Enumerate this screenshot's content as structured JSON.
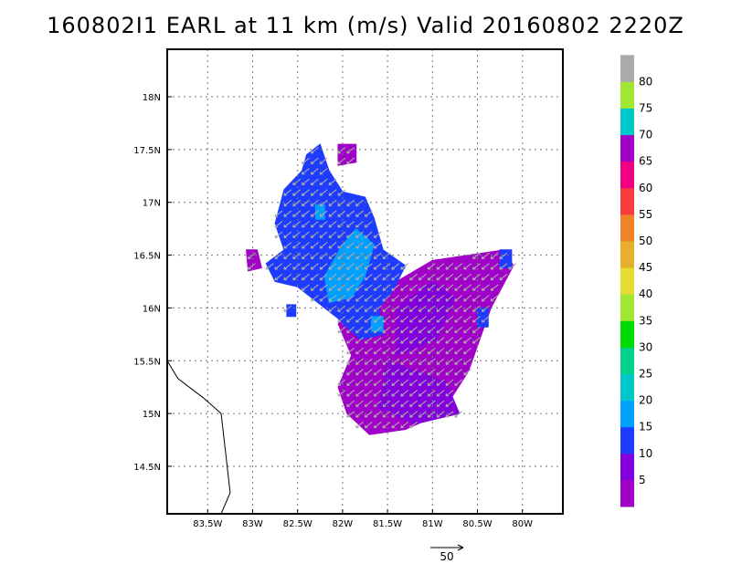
{
  "chart_data": {
    "type": "heatmap",
    "title": "160802I1  EARL  at 11 km (m/s)  Valid 20160802  2220Z",
    "x_ticks": [
      "83.5W",
      "83W",
      "82.5W",
      "82W",
      "81.5W",
      "81W",
      "80.5W",
      "80W"
    ],
    "x_tick_values": [
      -83.5,
      -83.0,
      -82.5,
      -82.0,
      -81.5,
      -81.0,
      -80.5,
      -80.0
    ],
    "y_ticks": [
      "18N",
      "17.5N",
      "17N",
      "16.5N",
      "16N",
      "15.5N",
      "15N",
      "14.5N"
    ],
    "y_tick_values": [
      18.0,
      17.5,
      17.0,
      16.5,
      16.0,
      15.5,
      15.0,
      14.5
    ],
    "xlim": [
      -83.95,
      -79.55
    ],
    "ylim": [
      14.05,
      18.45
    ],
    "grid": true,
    "colorbar": {
      "labels": [
        "5",
        "10",
        "15",
        "20",
        "25",
        "30",
        "35",
        "40",
        "45",
        "50",
        "55",
        "60",
        "65",
        "70",
        "75",
        "80"
      ],
      "colors": [
        "#a000c8",
        "#8200dc",
        "#1e3cff",
        "#00a0ff",
        "#00c8c8",
        "#00d28c",
        "#00dc00",
        "#a0e632",
        "#e6dc32",
        "#e6af2d",
        "#f08228",
        "#fa3c3c",
        "#f00082",
        "#a000c8",
        "#00c8c8",
        "#a0e632",
        "#aaaaaa"
      ]
    },
    "reference_vector": {
      "label": "50"
    },
    "coastline": [
      [
        -83.95,
        15.5
      ],
      [
        -83.83,
        15.33
      ],
      [
        -83.55,
        15.15
      ],
      [
        -83.35,
        15.0
      ],
      [
        -83.25,
        14.25
      ],
      [
        -83.35,
        14.05
      ]
    ],
    "wind_direction": "arrows point toward the southwest",
    "fields": [
      {
        "level": "5",
        "color": "#a000c8",
        "polygon": [
          [
            -81.5,
            16.2
          ],
          [
            -81.0,
            16.45
          ],
          [
            -80.2,
            16.55
          ],
          [
            -80.1,
            16.4
          ],
          [
            -80.35,
            16.0
          ],
          [
            -80.6,
            15.4
          ],
          [
            -80.9,
            15.0
          ],
          [
            -81.3,
            14.85
          ],
          [
            -81.7,
            14.8
          ],
          [
            -81.95,
            15.0
          ],
          [
            -82.05,
            15.25
          ],
          [
            -81.9,
            15.55
          ],
          [
            -82.05,
            15.85
          ],
          [
            -81.8,
            16.05
          ]
        ]
      },
      {
        "level": "5",
        "color": "#a000c8",
        "polygon": [
          [
            -83.07,
            16.55
          ],
          [
            -82.95,
            16.55
          ],
          [
            -82.9,
            16.38
          ],
          [
            -83.05,
            16.35
          ]
        ]
      },
      {
        "level": "5",
        "color": "#a000c8",
        "polygon": [
          [
            -82.05,
            17.55
          ],
          [
            -81.85,
            17.55
          ],
          [
            -81.85,
            17.38
          ],
          [
            -82.05,
            17.35
          ]
        ]
      },
      {
        "level": "10",
        "color": "#8200dc",
        "polygon": [
          [
            -81.4,
            16.0
          ],
          [
            -81.0,
            16.25
          ],
          [
            -80.75,
            16.1
          ],
          [
            -80.95,
            15.7
          ],
          [
            -81.4,
            15.55
          ]
        ]
      },
      {
        "level": "10",
        "color": "#8200dc",
        "polygon": [
          [
            -81.5,
            15.5
          ],
          [
            -80.85,
            15.3
          ],
          [
            -80.7,
            15.0
          ],
          [
            -81.2,
            14.9
          ],
          [
            -81.6,
            15.05
          ]
        ]
      },
      {
        "level": "15",
        "color": "#1e3cff",
        "polygon": [
          [
            -82.65,
            17.12
          ],
          [
            -82.45,
            17.3
          ],
          [
            -82.4,
            17.45
          ],
          [
            -82.25,
            17.55
          ],
          [
            -82.15,
            17.3
          ],
          [
            -82.0,
            17.1
          ],
          [
            -81.75,
            17.05
          ],
          [
            -81.65,
            16.85
          ],
          [
            -81.55,
            16.55
          ],
          [
            -81.3,
            16.4
          ],
          [
            -81.45,
            16.15
          ],
          [
            -81.6,
            16.0
          ],
          [
            -81.55,
            15.75
          ],
          [
            -81.8,
            15.7
          ],
          [
            -82.05,
            15.9
          ],
          [
            -82.2,
            16.0
          ],
          [
            -82.5,
            16.2
          ],
          [
            -82.75,
            16.25
          ],
          [
            -82.85,
            16.42
          ],
          [
            -82.65,
            16.55
          ],
          [
            -82.75,
            16.8
          ]
        ]
      },
      {
        "level": "15",
        "color": "#1e3cff",
        "polygon": [
          [
            -80.5,
            16.0
          ],
          [
            -80.38,
            16.0
          ],
          [
            -80.38,
            15.82
          ],
          [
            -80.5,
            15.82
          ]
        ]
      },
      {
        "level": "15",
        "color": "#1e3cff",
        "polygon": [
          [
            -80.25,
            16.55
          ],
          [
            -80.12,
            16.55
          ],
          [
            -80.12,
            16.38
          ],
          [
            -80.25,
            16.38
          ]
        ]
      },
      {
        "level": "15",
        "color": "#1e3cff",
        "polygon": [
          [
            -82.62,
            16.03
          ],
          [
            -82.52,
            16.03
          ],
          [
            -82.52,
            15.92
          ],
          [
            -82.62,
            15.92
          ]
        ]
      },
      {
        "level": "20",
        "color": "#00a0ff",
        "polygon": [
          [
            -82.0,
            16.6
          ],
          [
            -81.85,
            16.75
          ],
          [
            -81.65,
            16.6
          ],
          [
            -81.75,
            16.3
          ],
          [
            -81.9,
            16.1
          ],
          [
            -82.15,
            16.05
          ],
          [
            -82.2,
            16.3
          ]
        ]
      },
      {
        "level": "20",
        "color": "#00a0ff",
        "polygon": [
          [
            -82.3,
            16.98
          ],
          [
            -82.2,
            16.98
          ],
          [
            -82.2,
            16.84
          ],
          [
            -82.3,
            16.84
          ]
        ]
      },
      {
        "level": "20",
        "color": "#00a0ff",
        "polygon": [
          [
            -81.68,
            15.92
          ],
          [
            -81.55,
            15.92
          ],
          [
            -81.55,
            15.78
          ],
          [
            -81.68,
            15.78
          ]
        ]
      }
    ]
  }
}
